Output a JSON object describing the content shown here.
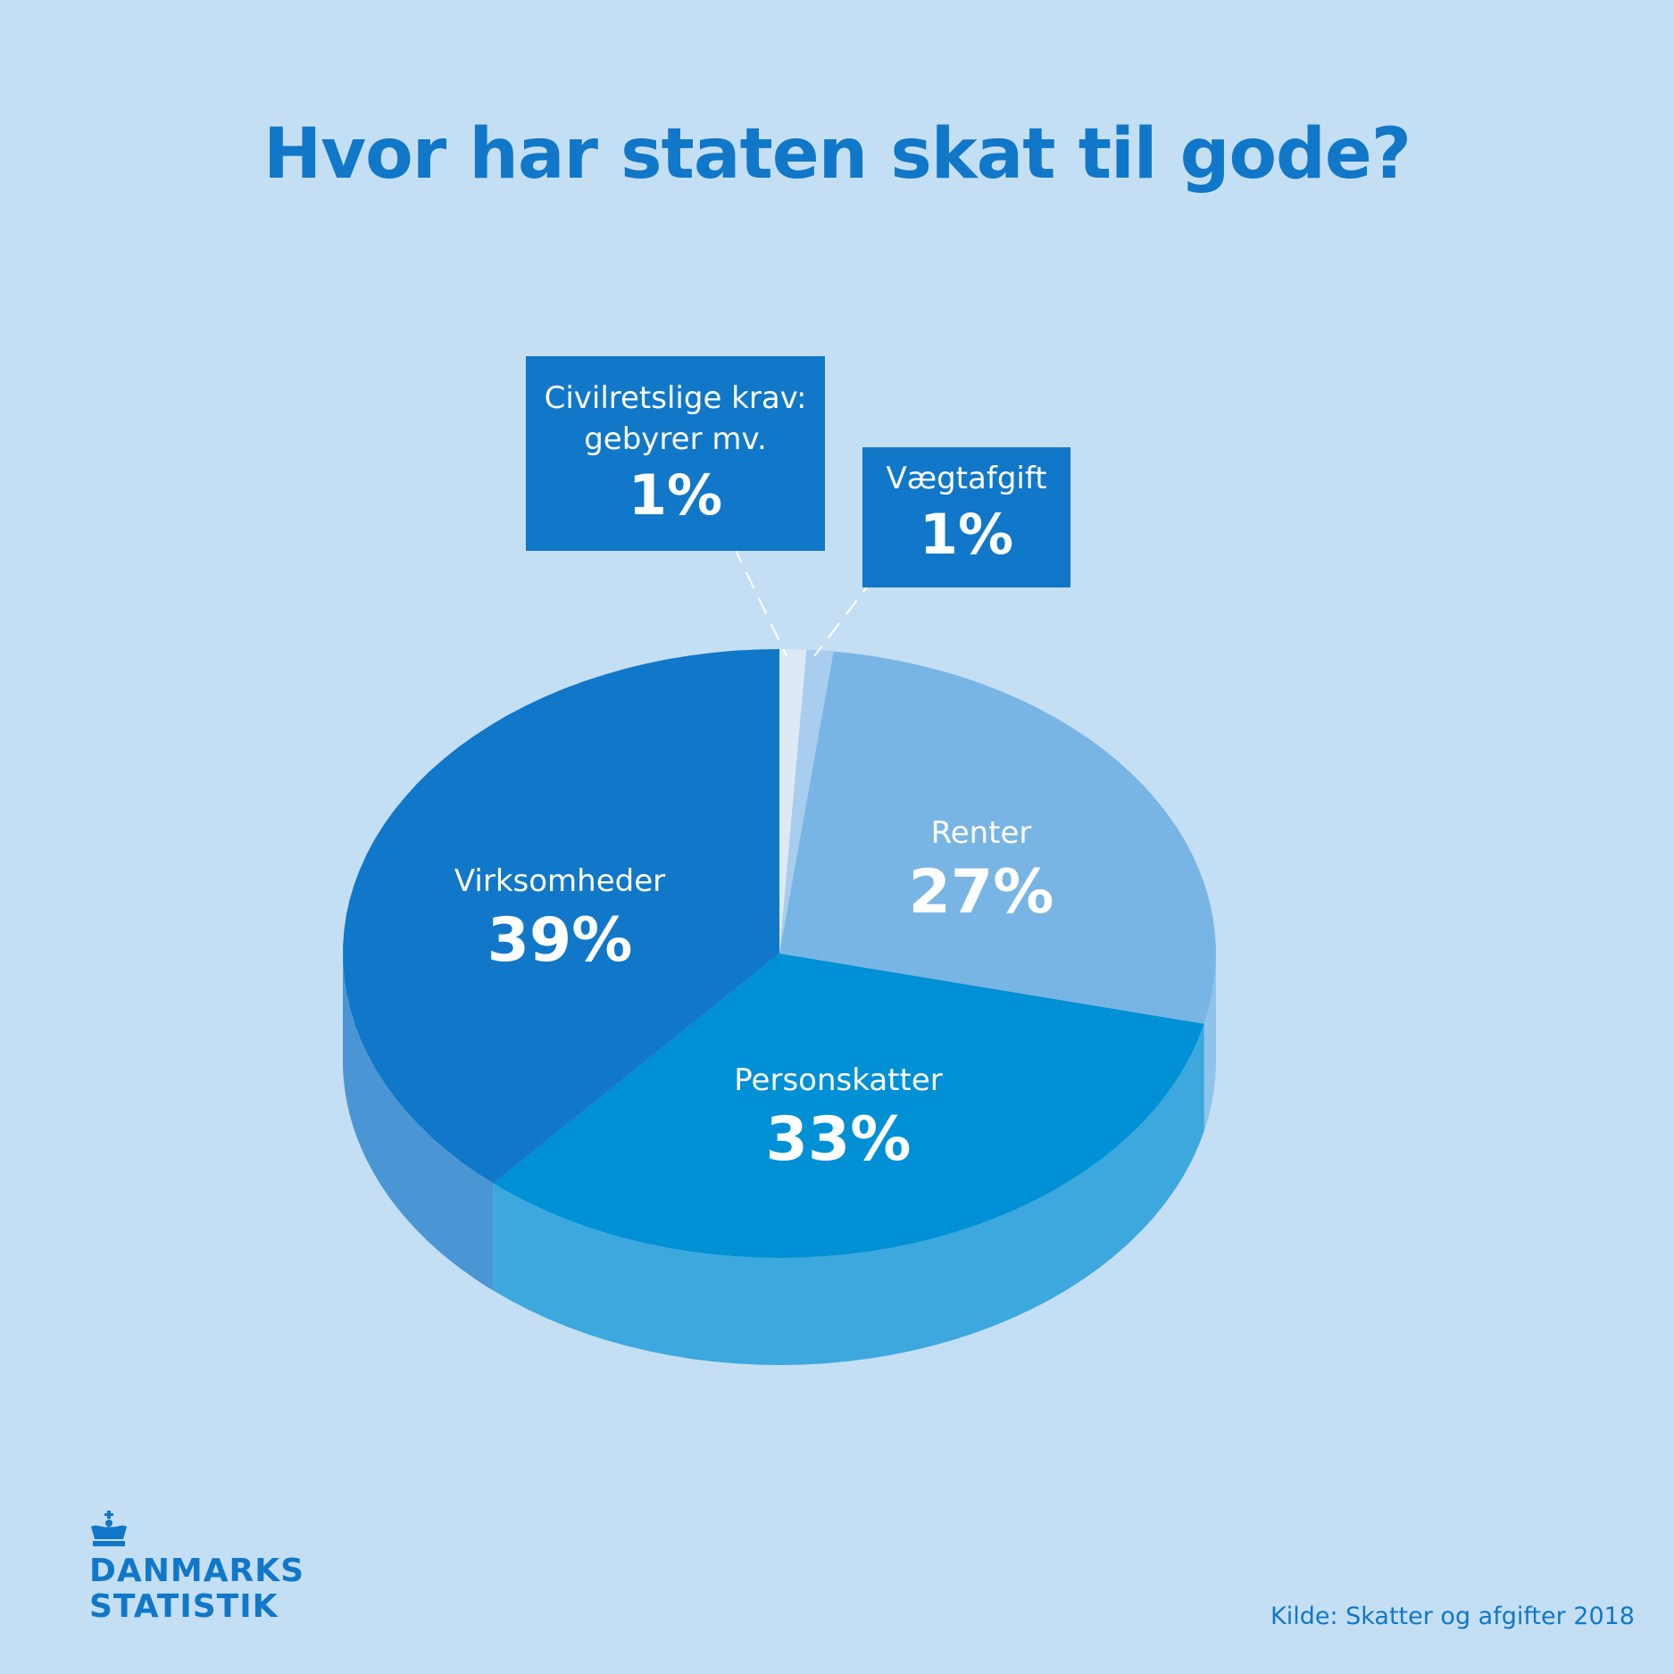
{
  "chart_data": {
    "type": "pie",
    "title": "Hvor har staten skat til gode?",
    "slices": [
      {
        "label": "Civilretslige krav: gebyrer mv.",
        "value": 1,
        "display": "1%",
        "color": "#ddeaf5"
      },
      {
        "label": "Vægtafgift",
        "value": 1,
        "display": "1%",
        "color": "#a8cdee"
      },
      {
        "label": "Renter",
        "value": 27,
        "display": "27%",
        "color": "#79b5e4"
      },
      {
        "label": "Personskatter",
        "value": 33,
        "display": "33%",
        "color": "#0090d5"
      },
      {
        "label": "Virksomheder",
        "value": 39,
        "display": "39%",
        "color": "#1177c8"
      }
    ],
    "side_colors": {
      "Renter": "#8fc4ea",
      "Personskatter": "#3da8de",
      "Virksomheder": "#4a95d4"
    },
    "style": "3d",
    "legend": "none"
  },
  "callouts": {
    "civil": {
      "label_line1": "Civilretslige krav:",
      "label_line2": "gebyrer mv.",
      "value": "1%"
    },
    "vaegt": {
      "label": "Vægtafgift",
      "value": "1%"
    }
  },
  "labels": {
    "virksomheder": {
      "name": "Virksomheder",
      "value": "39%"
    },
    "renter": {
      "name": "Renter",
      "value": "27%"
    },
    "personskatter": {
      "name": "Personskatter",
      "value": "33%"
    }
  },
  "logo": {
    "text": "DANMARKS\nSTATISTIK",
    "icon": "crown-icon"
  },
  "source": "Kilde: Skatter og afgifter 2018",
  "colors": {
    "background": "#c4dff3",
    "accent": "#1177c8",
    "callout": "#1177c8"
  }
}
